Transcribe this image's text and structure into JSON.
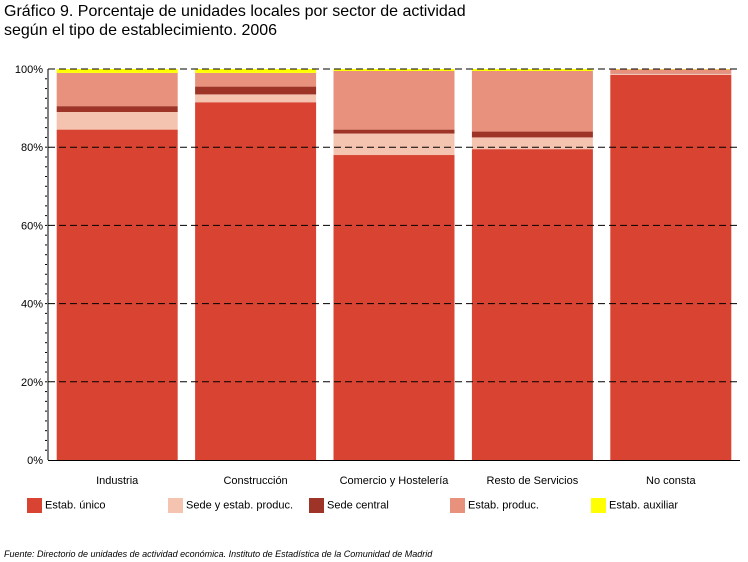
{
  "title": {
    "line1": "Gráfico 9. Porcentaje de unidades locales por sector de actividad",
    "line2": "según el tipo de establecimiento. 2006"
  },
  "source": "Fuente: Directorio de unidades de actividad económica. Instituto de Estadística de la Comunidad de Madrid",
  "chart_data": {
    "type": "bar",
    "stacked": true,
    "categories": [
      "Industria",
      "Construcción",
      "Comercio y Hostelería",
      "Resto de Servicios",
      "No consta"
    ],
    "y_ticks": [
      "0%",
      "20%",
      "40%",
      "60%",
      "80%",
      "100%"
    ],
    "ylim": [
      0,
      100
    ],
    "grid": true,
    "legend_position": "bottom",
    "series": [
      {
        "name": "Estab. único",
        "color": "#d94432",
        "values": [
          84.5,
          91.5,
          78.0,
          79.5,
          98.5
        ]
      },
      {
        "name": "Sede y estab. produc.",
        "color": "#f5c4b0",
        "values": [
          4.5,
          2.0,
          5.5,
          3.0,
          0.3
        ]
      },
      {
        "name": "Sede central",
        "color": "#9e3428",
        "values": [
          1.5,
          2.0,
          1.0,
          1.5,
          0.1
        ]
      },
      {
        "name": "Estab. produc.",
        "color": "#e8917c",
        "values": [
          8.5,
          3.5,
          15.0,
          15.5,
          1.0
        ]
      },
      {
        "name": "Estab. auxiliar",
        "color": "#ffff00",
        "values": [
          1.0,
          1.0,
          0.5,
          0.5,
          0.1
        ]
      }
    ]
  }
}
